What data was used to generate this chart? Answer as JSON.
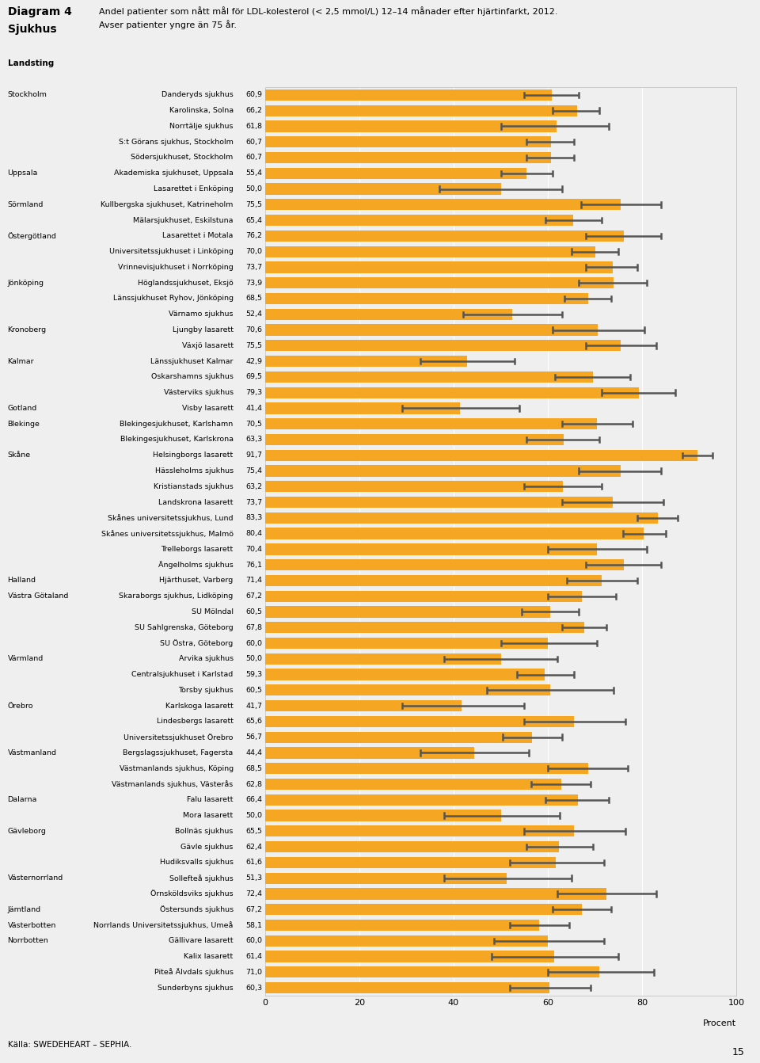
{
  "title_line1": "Diagram 4",
  "title_line2": "Sjukhus",
  "subtitle_line1": "Andel patienter som nått mål för LDL-kolesterol (< 2,5 mmol/L) 12–14 månader efter hjärtinfarkt, 2012.",
  "subtitle_line2": "Avser patienter yngre än 75 år.",
  "source": "Källa: SWEDEHEART – SEPHIA.",
  "xlabel": "Procent",
  "xlim": [
    0,
    100
  ],
  "xticks": [
    0,
    20,
    40,
    60,
    80,
    100
  ],
  "background_color": "#efefef",
  "bar_color": "#f5a623",
  "ci_color": "#555555",
  "bar_height": 0.72,
  "hospitals": [
    {
      "name": "Danderyds sjukhus",
      "value": 60.9,
      "ci_low": 55.0,
      "ci_high": 66.5,
      "landsting": "Stockholm"
    },
    {
      "name": "Karolinska, Solna",
      "value": 66.2,
      "ci_low": 61.0,
      "ci_high": 71.0,
      "landsting": ""
    },
    {
      "name": "Norrtälje sjukhus",
      "value": 61.8,
      "ci_low": 50.0,
      "ci_high": 73.0,
      "landsting": ""
    },
    {
      "name": "S:t Görans sjukhus, Stockholm",
      "value": 60.7,
      "ci_low": 55.5,
      "ci_high": 65.5,
      "landsting": ""
    },
    {
      "name": "Södersjukhuset, Stockholm",
      "value": 60.7,
      "ci_low": 55.5,
      "ci_high": 65.5,
      "landsting": ""
    },
    {
      "name": "Akademiska sjukhuset, Uppsala",
      "value": 55.4,
      "ci_low": 50.0,
      "ci_high": 61.0,
      "landsting": "Uppsala"
    },
    {
      "name": "Lasarettet i Enköping",
      "value": 50.0,
      "ci_low": 37.0,
      "ci_high": 63.0,
      "landsting": ""
    },
    {
      "name": "Kullbergska sjukhuset, Katrineholm",
      "value": 75.5,
      "ci_low": 67.0,
      "ci_high": 84.0,
      "landsting": "Sörmland"
    },
    {
      "name": "Mälarsjukhuset, Eskilstuna",
      "value": 65.4,
      "ci_low": 59.5,
      "ci_high": 71.5,
      "landsting": ""
    },
    {
      "name": "Lasarettet i Motala",
      "value": 76.2,
      "ci_low": 68.0,
      "ci_high": 84.0,
      "landsting": "Östergötland"
    },
    {
      "name": "Universitetssjukhuset i Linköping",
      "value": 70.0,
      "ci_low": 65.0,
      "ci_high": 75.0,
      "landsting": ""
    },
    {
      "name": "Vrinnevisjukhuset i Norrköping",
      "value": 73.7,
      "ci_low": 68.0,
      "ci_high": 79.0,
      "landsting": ""
    },
    {
      "name": "Höglandssjukhuset, Eksjö",
      "value": 73.9,
      "ci_low": 66.5,
      "ci_high": 81.0,
      "landsting": "Jönköping"
    },
    {
      "name": "Länssjukhuset Ryhov, Jönköping",
      "value": 68.5,
      "ci_low": 63.5,
      "ci_high": 73.5,
      "landsting": ""
    },
    {
      "name": "Värnamo sjukhus",
      "value": 52.4,
      "ci_low": 42.0,
      "ci_high": 63.0,
      "landsting": ""
    },
    {
      "name": "Ljungby lasarett",
      "value": 70.6,
      "ci_low": 61.0,
      "ci_high": 80.5,
      "landsting": "Kronoberg"
    },
    {
      "name": "Växjö lasarett",
      "value": 75.5,
      "ci_low": 68.0,
      "ci_high": 83.0,
      "landsting": ""
    },
    {
      "name": "Länssjukhuset Kalmar",
      "value": 42.9,
      "ci_low": 33.0,
      "ci_high": 53.0,
      "landsting": "Kalmar"
    },
    {
      "name": "Oskarshamns sjukhus",
      "value": 69.5,
      "ci_low": 61.5,
      "ci_high": 77.5,
      "landsting": ""
    },
    {
      "name": "Västerviks sjukhus",
      "value": 79.3,
      "ci_low": 71.5,
      "ci_high": 87.0,
      "landsting": ""
    },
    {
      "name": "Visby lasarett",
      "value": 41.4,
      "ci_low": 29.0,
      "ci_high": 54.0,
      "landsting": "Gotland"
    },
    {
      "name": "Blekingesjukhuset, Karlshamn",
      "value": 70.5,
      "ci_low": 63.0,
      "ci_high": 78.0,
      "landsting": "Blekinge"
    },
    {
      "name": "Blekingesjukhuset, Karlskrona",
      "value": 63.3,
      "ci_low": 55.5,
      "ci_high": 71.0,
      "landsting": ""
    },
    {
      "name": "Helsingborgs lasarett",
      "value": 91.7,
      "ci_low": 88.5,
      "ci_high": 95.0,
      "landsting": "Skåne"
    },
    {
      "name": "Hässleholms sjukhus",
      "value": 75.4,
      "ci_low": 66.5,
      "ci_high": 84.0,
      "landsting": ""
    },
    {
      "name": "Kristianstads sjukhus",
      "value": 63.2,
      "ci_low": 55.0,
      "ci_high": 71.5,
      "landsting": ""
    },
    {
      "name": "Landskrona lasarett",
      "value": 73.7,
      "ci_low": 63.0,
      "ci_high": 84.5,
      "landsting": ""
    },
    {
      "name": "Skånes universitetssjukhus, Lund",
      "value": 83.3,
      "ci_low": 79.0,
      "ci_high": 87.5,
      "landsting": ""
    },
    {
      "name": "Skånes universitetssjukhus, Malmö",
      "value": 80.4,
      "ci_low": 76.0,
      "ci_high": 85.0,
      "landsting": ""
    },
    {
      "name": "Trelleborgs lasarett",
      "value": 70.4,
      "ci_low": 60.0,
      "ci_high": 81.0,
      "landsting": ""
    },
    {
      "name": "Ängelholms sjukhus",
      "value": 76.1,
      "ci_low": 68.0,
      "ci_high": 84.0,
      "landsting": ""
    },
    {
      "name": "Hjärthuset, Varberg",
      "value": 71.4,
      "ci_low": 64.0,
      "ci_high": 79.0,
      "landsting": "Halland"
    },
    {
      "name": "Skaraborgs sjukhus, Lidköping",
      "value": 67.2,
      "ci_low": 60.0,
      "ci_high": 74.5,
      "landsting": "Västra Götaland"
    },
    {
      "name": "SU Mölndal",
      "value": 60.5,
      "ci_low": 54.5,
      "ci_high": 66.5,
      "landsting": ""
    },
    {
      "name": "SU Sahlgrenska, Göteborg",
      "value": 67.8,
      "ci_low": 63.0,
      "ci_high": 72.5,
      "landsting": ""
    },
    {
      "name": "SU Östra, Göteborg",
      "value": 60.0,
      "ci_low": 50.0,
      "ci_high": 70.5,
      "landsting": ""
    },
    {
      "name": "Arvika sjukhus",
      "value": 50.0,
      "ci_low": 38.0,
      "ci_high": 62.0,
      "landsting": "Värmland"
    },
    {
      "name": "Centralsjukhuset i Karlstad",
      "value": 59.3,
      "ci_low": 53.5,
      "ci_high": 65.5,
      "landsting": ""
    },
    {
      "name": "Torsby sjukhus",
      "value": 60.5,
      "ci_low": 47.0,
      "ci_high": 74.0,
      "landsting": ""
    },
    {
      "name": "Karlskoga lasarett",
      "value": 41.7,
      "ci_low": 29.0,
      "ci_high": 55.0,
      "landsting": "Örebro"
    },
    {
      "name": "Lindesbergs lasarett",
      "value": 65.6,
      "ci_low": 55.0,
      "ci_high": 76.5,
      "landsting": ""
    },
    {
      "name": "Universitetssjukhuset Örebro",
      "value": 56.7,
      "ci_low": 50.5,
      "ci_high": 63.0,
      "landsting": ""
    },
    {
      "name": "Bergslagssjukhuset, Fagersta",
      "value": 44.4,
      "ci_low": 33.0,
      "ci_high": 56.0,
      "landsting": "Västmanland"
    },
    {
      "name": "Västmanlands sjukhus, Köping",
      "value": 68.5,
      "ci_low": 60.0,
      "ci_high": 77.0,
      "landsting": ""
    },
    {
      "name": "Västmanlands sjukhus, Västerås",
      "value": 62.8,
      "ci_low": 56.5,
      "ci_high": 69.0,
      "landsting": ""
    },
    {
      "name": "Falu lasarett",
      "value": 66.4,
      "ci_low": 59.5,
      "ci_high": 73.0,
      "landsting": "Dalarna"
    },
    {
      "name": "Mora lasarett",
      "value": 50.0,
      "ci_low": 38.0,
      "ci_high": 62.5,
      "landsting": ""
    },
    {
      "name": "Bollnäs sjukhus",
      "value": 65.5,
      "ci_low": 55.0,
      "ci_high": 76.5,
      "landsting": "Gävleborg"
    },
    {
      "name": "Gävle sjukhus",
      "value": 62.4,
      "ci_low": 55.5,
      "ci_high": 69.5,
      "landsting": ""
    },
    {
      "name": "Hudiksvalls sjukhus",
      "value": 61.6,
      "ci_low": 52.0,
      "ci_high": 72.0,
      "landsting": ""
    },
    {
      "name": "Sollefteå sjukhus",
      "value": 51.3,
      "ci_low": 38.0,
      "ci_high": 65.0,
      "landsting": "Västernorrland"
    },
    {
      "name": "Örnsköldsviks sjukhus",
      "value": 72.4,
      "ci_low": 62.0,
      "ci_high": 83.0,
      "landsting": ""
    },
    {
      "name": "Östersunds sjukhus",
      "value": 67.2,
      "ci_low": 61.0,
      "ci_high": 73.5,
      "landsting": "Jämtland"
    },
    {
      "name": "Norrlands Universitetssjukhus, Umeå",
      "value": 58.1,
      "ci_low": 52.0,
      "ci_high": 64.5,
      "landsting": "Västerbotten"
    },
    {
      "name": "Gällivare lasarett",
      "value": 60.0,
      "ci_low": 48.5,
      "ci_high": 72.0,
      "landsting": "Norrbotten"
    },
    {
      "name": "Kalix lasarett",
      "value": 61.4,
      "ci_low": 48.0,
      "ci_high": 75.0,
      "landsting": ""
    },
    {
      "name": "Piteå Älvdals sjukhus",
      "value": 71.0,
      "ci_low": 60.0,
      "ci_high": 82.5,
      "landsting": ""
    },
    {
      "name": "Sunderbyns sjukhus",
      "value": 60.3,
      "ci_low": 52.0,
      "ci_high": 69.0,
      "landsting": ""
    }
  ]
}
